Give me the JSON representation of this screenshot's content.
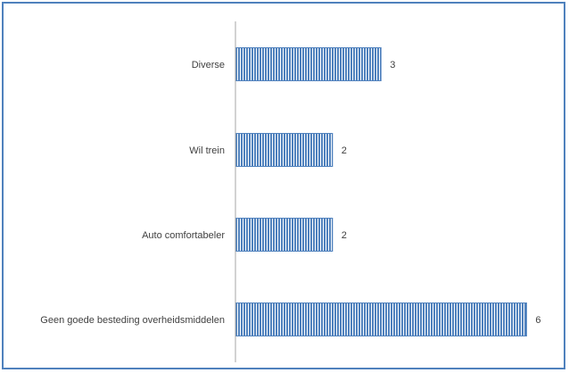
{
  "chart_data": {
    "type": "bar",
    "orientation": "horizontal",
    "categories": [
      "Diverse",
      "Wil trein",
      "Auto comfortabeler",
      "Geen goede besteding overheidsmiddelen"
    ],
    "values": [
      3,
      2,
      2,
      6
    ],
    "value_labels": [
      "3",
      "2",
      "2",
      "6"
    ],
    "title": "",
    "xlabel": "",
    "ylabel": "",
    "xlim": [
      0,
      6.25
    ],
    "grid": false,
    "legend": "none",
    "colors": {
      "bar_fill": "#4f81bd",
      "bar_stripe": "#ffffff",
      "axis": "#a6a6a6",
      "frame": "#4f81bd"
    }
  }
}
